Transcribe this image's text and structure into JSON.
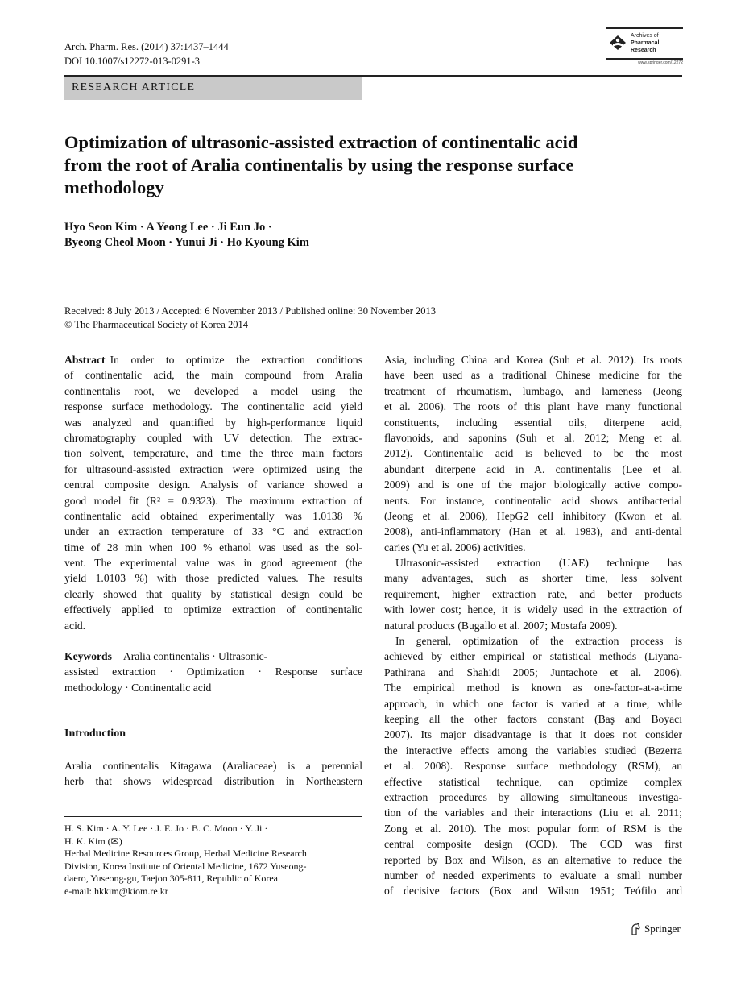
{
  "header": {
    "journal": "Arch. Pharm. Res. (2014) 37:1437–1444",
    "doi": "DOI 10.1007/s12272-013-0291-3",
    "logo": {
      "line1": "Archives of",
      "line2": "Pharmacal",
      "line3": "Research",
      "url": "www.springer.com/12272"
    }
  },
  "article_type": "RESEARCH ARTICLE",
  "title": [
    "Optimization of ultrasonic-assisted extraction of continentalic acid",
    "from the root of Aralia continentalis by using the response surface",
    "methodology"
  ],
  "authors": [
    "Hyo Seon Kim · A Yeong Lee · Ji Eun Jo ·",
    "Byeong Cheol Moon · Yunui Ji · Ho Kyoung Kim"
  ],
  "dates": [
    "Received: 8 July 2013 / Accepted: 6 November 2013 / Published online: 30 November 2013",
    "© The Pharmaceutical Society of Korea 2014"
  ],
  "abstract": {
    "label": "Abstract",
    "lines": [
      "In order to optimize the extraction conditions",
      "of continentalic acid, the main compound from Aralia",
      "continentalis root, we developed a model using the",
      "response surface methodology. The continentalic acid yield",
      "was analyzed and quantified by high-performance liquid",
      "chromatography coupled with UV detection. The extrac-",
      "tion solvent, temperature, and time the three main factors",
      "for ultrasound-assisted extraction were optimized using the",
      "central composite design. Analysis of variance showed a",
      "good model fit (R² = 0.9323). The maximum extraction of",
      "continentalic acid obtained experimentally was 1.0138 %",
      "under an extraction temperature of 33 °C and extraction",
      "time of 28 min when 100 % ethanol was used as the sol-",
      "vent. The experimental value was in good agreement (the",
      "yield 1.0103 %) with those predicted values. The results",
      "clearly showed that quality by statistical design could be",
      "effectively applied to optimize extraction of continentalic",
      "acid."
    ]
  },
  "keywords": {
    "label": "Keywords",
    "lines": [
      "Aralia continentalis · Ultrasonic-",
      "assisted extraction · Optimization · Response surface",
      "methodology · Continentalic acid"
    ]
  },
  "introduction": {
    "heading": "Introduction",
    "lines": [
      "Aralia continentalis Kitagawa (Araliaceae) is a perennial",
      "herb that shows widespread distribution in Northeastern"
    ]
  },
  "footnote": [
    "H. S. Kim · A. Y. Lee · J. E. Jo · B. C. Moon · Y. Ji ·",
    "H. K. Kim (✉)",
    "Herbal Medicine Resources Group, Herbal Medicine Research",
    "Division, Korea Institute of Oriental Medicine, 1672 Yuseong-",
    "daero, Yuseong-gu, Taejon 305-811, Republic of Korea",
    "e-mail: hkkim@kiom.re.kr"
  ],
  "right": {
    "paragraphs": [
      {
        "lines": [
          "Asia, including China and Korea (Suh et al. 2012). Its roots",
          "have been used as a traditional Chinese medicine for the",
          "treatment of rheumatism, lumbago, and lameness (Jeong",
          "et al. 2006). The roots of this plant have many functional",
          "constituents, including essential oils, diterpene acid,",
          "flavonoids, and saponins (Suh et al. 2012; Meng et al.",
          "2012). Continentalic acid is believed to be the most",
          "abundant diterpene acid in A. continentalis (Lee et al.",
          "2009) and is one of the major biologically active compo-",
          "nents. For instance, continentalic acid shows antibacterial",
          "(Jeong et al. 2006), HepG2 cell inhibitory (Kwon et al.",
          "2008), anti-inflammatory (Han et al. 1983), and anti-dental",
          "caries (Yu et al. 2006) activities."
        ]
      },
      {
        "lines": [
          "Ultrasonic-assisted extraction (UAE) technique has",
          "many advantages, such as shorter time, less solvent",
          "requirement, higher extraction rate, and better products",
          "with lower cost; hence, it is widely used in the extraction of",
          "natural products (Bugallo et al. 2007; Mostafa 2009)."
        ]
      },
      {
        "lines": [
          "In general, optimization of the extraction process is",
          "achieved by either empirical or statistical methods (Liyana-",
          "Pathirana and Shahidi 2005; Juntachote et al. 2006).",
          "The empirical method is known as one-factor-at-a-time",
          "approach, in which one factor is varied at a time, while",
          "keeping all the other factors constant (Baş and Boyacı",
          "2007). Its major disadvantage is that it does not consider",
          "the interactive effects among the variables studied (Bezerra",
          "et al. 2008). Response surface methodology (RSM), an",
          "effective statistical technique, can optimize complex",
          "extraction procedures by allowing simultaneous investiga-",
          "tion of the variables and their interactions (Liu et al. 2011;",
          "Zong et al. 2010). The most popular form of RSM is the",
          "central composite design (CCD). The CCD was first",
          "reported by Box and Wilson, as an alternative to reduce the",
          "number of needed experiments to evaluate a small number",
          "of decisive factors (Box and Wilson 1951; Teófilo and"
        ]
      }
    ]
  },
  "publisher": "Springer",
  "colors": {
    "banner": "#c9c9c9",
    "citation": "#1a4fa0"
  }
}
